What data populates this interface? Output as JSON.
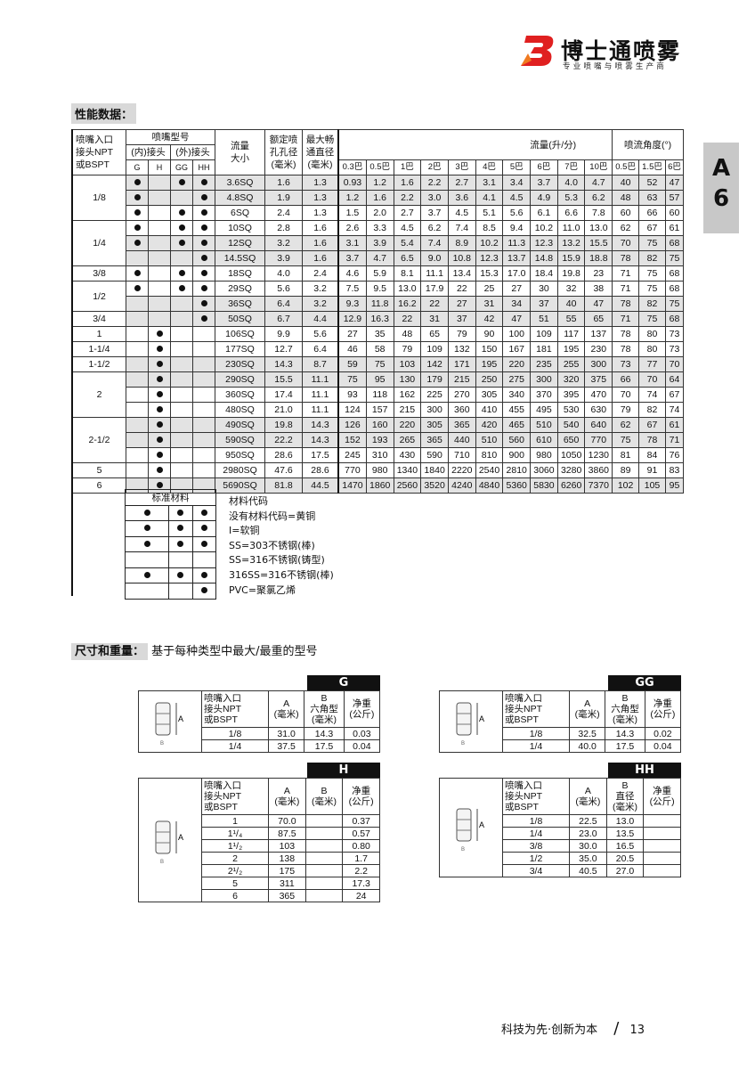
{
  "header": {
    "brand": "博士通喷雾",
    "tagline": "专业喷嘴与喷雾生产商",
    "logo_color": "#e02020"
  },
  "side_tab": {
    "letter": "A",
    "number": "6"
  },
  "performance": {
    "section_label": "性能数据：",
    "headers": {
      "inlet": [
        "喷嘴入口",
        "接头NPT",
        "或BSPT"
      ],
      "type": "喷嘴型号",
      "female": "(内)接头",
      "male": "(外)接头",
      "types": [
        "G",
        "H",
        "GG",
        "HH"
      ],
      "size": [
        "流量",
        "大小"
      ],
      "orifice": [
        "额定喷",
        "孔孔径",
        "(毫米)"
      ],
      "passage": [
        "最大畅",
        "通直径",
        "(毫米)"
      ],
      "flow": "流量(升/分)",
      "angle": "喷流角度(°)",
      "flow_pressures": [
        "0.3巴",
        "0.5巴",
        "1巴",
        "2巴",
        "3巴",
        "4巴",
        "5巴",
        "6巴",
        "7巴",
        "10巴"
      ],
      "angle_pressures": [
        "0.5巴",
        "1.5巴",
        "6巴"
      ]
    },
    "groups": [
      {
        "inlet": "1/8",
        "rows": [
          {
            "types": [
              1,
              0,
              1,
              1
            ],
            "size": "3.6SQ",
            "orifice": "1.6",
            "passage": "1.3",
            "flow": [
              "0.93",
              "1.2",
              "1.6",
              "2.2",
              "2.7",
              "3.1",
              "3.4",
              "3.7",
              "4.0",
              "4.7"
            ],
            "angle": [
              "40",
              "52",
              "47"
            ],
            "shade": true
          },
          {
            "types": [
              1,
              0,
              0,
              1
            ],
            "size": "4.8SQ",
            "orifice": "1.9",
            "passage": "1.3",
            "flow": [
              "1.2",
              "1.6",
              "2.2",
              "3.0",
              "3.6",
              "4.1",
              "4.5",
              "4.9",
              "5.3",
              "6.2"
            ],
            "angle": [
              "48",
              "63",
              "57"
            ],
            "shade": true
          },
          {
            "types": [
              1,
              0,
              1,
              1
            ],
            "size": "6SQ",
            "orifice": "2.4",
            "passage": "1.3",
            "flow": [
              "1.5",
              "2.0",
              "2.7",
              "3.7",
              "4.5",
              "5.1",
              "5.6",
              "6.1",
              "6.6",
              "7.8"
            ],
            "angle": [
              "60",
              "66",
              "60"
            ],
            "shade": false
          }
        ]
      },
      {
        "inlet": "1/4",
        "rows": [
          {
            "types": [
              1,
              0,
              1,
              1
            ],
            "size": "10SQ",
            "orifice": "2.8",
            "passage": "1.6",
            "flow": [
              "2.6",
              "3.3",
              "4.5",
              "6.2",
              "7.4",
              "8.5",
              "9.4",
              "10.2",
              "11.0",
              "13.0"
            ],
            "angle": [
              "62",
              "67",
              "61"
            ],
            "shade": false
          },
          {
            "types": [
              1,
              0,
              1,
              1
            ],
            "size": "12SQ",
            "orifice": "3.2",
            "passage": "1.6",
            "flow": [
              "3.1",
              "3.9",
              "5.4",
              "7.4",
              "8.9",
              "10.2",
              "11.3",
              "12.3",
              "13.2",
              "15.5"
            ],
            "angle": [
              "70",
              "75",
              "68"
            ],
            "shade": true
          },
          {
            "types": [
              0,
              0,
              0,
              1
            ],
            "size": "14.5SQ",
            "orifice": "3.9",
            "passage": "1.6",
            "flow": [
              "3.7",
              "4.7",
              "6.5",
              "9.0",
              "10.8",
              "12.3",
              "13.7",
              "14.8",
              "15.9",
              "18.8"
            ],
            "angle": [
              "78",
              "82",
              "75"
            ],
            "shade": true
          }
        ]
      },
      {
        "inlet": "3/8",
        "rows": [
          {
            "types": [
              1,
              0,
              1,
              1
            ],
            "size": "18SQ",
            "orifice": "4.0",
            "passage": "2.4",
            "flow": [
              "4.6",
              "5.9",
              "8.1",
              "11.1",
              "13.4",
              "15.3",
              "17.0",
              "18.4",
              "19.8",
              "23"
            ],
            "angle": [
              "71",
              "75",
              "68"
            ],
            "shade": false
          }
        ]
      },
      {
        "inlet": "1/2",
        "rows": [
          {
            "types": [
              1,
              0,
              1,
              1
            ],
            "size": "29SQ",
            "orifice": "5.6",
            "passage": "3.2",
            "flow": [
              "7.5",
              "9.5",
              "13.0",
              "17.9",
              "22",
              "25",
              "27",
              "30",
              "32",
              "38"
            ],
            "angle": [
              "71",
              "75",
              "68"
            ],
            "shade": false
          },
          {
            "types": [
              0,
              0,
              0,
              1
            ],
            "size": "36SQ",
            "orifice": "6.4",
            "passage": "3.2",
            "flow": [
              "9.3",
              "11.8",
              "16.2",
              "22",
              "27",
              "31",
              "34",
              "37",
              "40",
              "47"
            ],
            "angle": [
              "78",
              "82",
              "75"
            ],
            "shade": true
          }
        ]
      },
      {
        "inlet": "3/4",
        "rows": [
          {
            "types": [
              0,
              0,
              0,
              1
            ],
            "size": "50SQ",
            "orifice": "6.7",
            "passage": "4.4",
            "flow": [
              "12.9",
              "16.3",
              "22",
              "31",
              "37",
              "42",
              "47",
              "51",
              "55",
              "65"
            ],
            "angle": [
              "71",
              "75",
              "68"
            ],
            "shade": true
          }
        ]
      },
      {
        "inlet": "1",
        "rows": [
          {
            "types": [
              0,
              1,
              0,
              0
            ],
            "size": "106SQ",
            "orifice": "9.9",
            "passage": "5.6",
            "flow": [
              "27",
              "35",
              "48",
              "65",
              "79",
              "90",
              "100",
              "109",
              "117",
              "137"
            ],
            "angle": [
              "78",
              "80",
              "73"
            ],
            "shade": false
          }
        ]
      },
      {
        "inlet": "1-1/4",
        "rows": [
          {
            "types": [
              0,
              1,
              0,
              0
            ],
            "size": "177SQ",
            "orifice": "12.7",
            "passage": "6.4",
            "flow": [
              "46",
              "58",
              "79",
              "109",
              "132",
              "150",
              "167",
              "181",
              "195",
              "230"
            ],
            "angle": [
              "78",
              "80",
              "73"
            ],
            "shade": false
          }
        ]
      },
      {
        "inlet": "1-1/2",
        "rows": [
          {
            "types": [
              0,
              1,
              0,
              0
            ],
            "size": "230SQ",
            "orifice": "14.3",
            "passage": "8.7",
            "flow": [
              "59",
              "75",
              "103",
              "142",
              "171",
              "195",
              "220",
              "235",
              "255",
              "300"
            ],
            "angle": [
              "73",
              "77",
              "70"
            ],
            "shade": true
          }
        ]
      },
      {
        "inlet": "2",
        "rows": [
          {
            "types": [
              0,
              1,
              0,
              0
            ],
            "size": "290SQ",
            "orifice": "15.5",
            "passage": "11.1",
            "flow": [
              "75",
              "95",
              "130",
              "179",
              "215",
              "250",
              "275",
              "300",
              "320",
              "375"
            ],
            "angle": [
              "66",
              "70",
              "64"
            ],
            "shade": true
          },
          {
            "types": [
              0,
              1,
              0,
              0
            ],
            "size": "360SQ",
            "orifice": "17.4",
            "passage": "11.1",
            "flow": [
              "93",
              "118",
              "162",
              "225",
              "270",
              "305",
              "340",
              "370",
              "395",
              "470"
            ],
            "angle": [
              "70",
              "74",
              "67"
            ],
            "shade": false
          },
          {
            "types": [
              0,
              1,
              0,
              0
            ],
            "size": "480SQ",
            "orifice": "21.0",
            "passage": "11.1",
            "flow": [
              "124",
              "157",
              "215",
              "300",
              "360",
              "410",
              "455",
              "495",
              "530",
              "630"
            ],
            "angle": [
              "79",
              "82",
              "74"
            ],
            "shade": false
          }
        ]
      },
      {
        "inlet": "2-1/2",
        "rows": [
          {
            "types": [
              0,
              1,
              0,
              0
            ],
            "size": "490SQ",
            "orifice": "19.8",
            "passage": "14.3",
            "flow": [
              "126",
              "160",
              "220",
              "305",
              "365",
              "420",
              "465",
              "510",
              "540",
              "640"
            ],
            "angle": [
              "62",
              "67",
              "61"
            ],
            "shade": true
          },
          {
            "types": [
              0,
              1,
              0,
              0
            ],
            "size": "590SQ",
            "orifice": "22.2",
            "passage": "14.3",
            "flow": [
              "152",
              "193",
              "265",
              "365",
              "440",
              "510",
              "560",
              "610",
              "650",
              "770"
            ],
            "angle": [
              "75",
              "78",
              "71"
            ],
            "shade": true
          },
          {
            "types": [
              0,
              1,
              0,
              0
            ],
            "size": "950SQ",
            "orifice": "28.6",
            "passage": "17.5",
            "flow": [
              "245",
              "310",
              "430",
              "590",
              "710",
              "810",
              "900",
              "980",
              "1050",
              "1230"
            ],
            "angle": [
              "81",
              "84",
              "76"
            ],
            "shade": false
          }
        ]
      },
      {
        "inlet": "5",
        "rows": [
          {
            "types": [
              0,
              1,
              0,
              0
            ],
            "size": "2980SQ",
            "orifice": "47.6",
            "passage": "28.6",
            "flow": [
              "770",
              "980",
              "1340",
              "1840",
              "2220",
              "2540",
              "2810",
              "3060",
              "3280",
              "3860"
            ],
            "angle": [
              "89",
              "91",
              "83"
            ],
            "shade": false
          }
        ]
      },
      {
        "inlet": "6",
        "rows": [
          {
            "types": [
              0,
              1,
              0,
              0
            ],
            "size": "5690SQ",
            "orifice": "81.8",
            "passage": "44.5",
            "flow": [
              "1470",
              "1860",
              "2560",
              "3520",
              "4240",
              "4840",
              "5360",
              "5830",
              "6260",
              "7370"
            ],
            "angle": [
              "102",
              "105",
              "95"
            ],
            "shade": true
          }
        ]
      }
    ],
    "materials": {
      "header": "标准材料",
      "title": "材料代码",
      "rows": [
        {
          "marks": [
            1,
            1,
            1
          ],
          "label": "没有材料代码=黄铜"
        },
        {
          "marks": [
            1,
            1,
            1
          ],
          "label": "I=软铜"
        },
        {
          "marks": [
            1,
            1,
            1
          ],
          "label": "SS=303不锈钢(棒)"
        },
        {
          "marks": [
            0,
            0,
            0
          ],
          "label": "SS=316不锈钢(铸型)"
        },
        {
          "marks": [
            1,
            1,
            1
          ],
          "label": "316SS=316不锈钢(棒)"
        },
        {
          "marks": [
            0,
            0,
            1
          ],
          "label": "PVC=聚氯乙烯"
        }
      ]
    }
  },
  "dimensions": {
    "section_label": "尺寸和重量：",
    "section_note": "基于每种类型中最大/最重的型号",
    "tables": [
      {
        "tag": "G",
        "headers": [
          [
            "喷嘴入口",
            "接头NPT",
            "或BSPT"
          ],
          [
            "A",
            "(毫米)"
          ],
          [
            "B",
            "六角型",
            "(毫米)"
          ],
          [
            "净重",
            "(公斤)"
          ]
        ],
        "rows": [
          [
            "1/8",
            "31.0",
            "14.3",
            "0.03"
          ],
          [
            "1/4",
            "37.5",
            "17.5",
            "0.04"
          ]
        ]
      },
      {
        "tag": "GG",
        "headers": [
          [
            "喷嘴入口",
            "接头NPT",
            "或BSPT"
          ],
          [
            "A",
            "(毫米)"
          ],
          [
            "B",
            "六角型",
            "(毫米)"
          ],
          [
            "净重",
            "(公斤)"
          ]
        ],
        "rows": [
          [
            "1/8",
            "32.5",
            "14.3",
            "0.02"
          ],
          [
            "1/4",
            "40.0",
            "17.5",
            "0.04"
          ]
        ]
      },
      {
        "tag": "H",
        "headers": [
          [
            "喷嘴入口",
            "接头NPT",
            "或BSPT"
          ],
          [
            "A",
            "(毫米)"
          ],
          [
            "B",
            "(毫米)"
          ],
          [
            "净重",
            "(公斤)"
          ]
        ],
        "rows": [
          [
            "1",
            "70.0",
            "",
            "0.37"
          ],
          [
            "1¹/₄",
            "87.5",
            "",
            "0.57"
          ],
          [
            "1¹/₂",
            "103",
            "",
            "0.80"
          ],
          [
            "2",
            "138",
            "",
            "1.7"
          ],
          [
            "2¹/₂",
            "175",
            "",
            "2.2"
          ],
          [
            "5",
            "311",
            "",
            "17.3"
          ],
          [
            "6",
            "365",
            "",
            "24"
          ]
        ]
      },
      {
        "tag": "HH",
        "headers": [
          [
            "喷嘴入口",
            "接头NPT",
            "或BSPT"
          ],
          [
            "A",
            "(毫米)"
          ],
          [
            "B",
            "直径",
            "(毫米)"
          ],
          [
            "净重",
            "(公斤)"
          ]
        ],
        "rows": [
          [
            "1/8",
            "22.5",
            "13.0",
            ""
          ],
          [
            "1/4",
            "23.0",
            "13.5",
            ""
          ],
          [
            "3/8",
            "30.0",
            "16.5",
            ""
          ],
          [
            "1/2",
            "35.0",
            "20.5",
            ""
          ],
          [
            "3/4",
            "40.5",
            "27.0",
            ""
          ]
        ]
      }
    ],
    "drawing_labels": {
      "a": "A",
      "b": "B"
    }
  },
  "footer": {
    "slogan": "科技为先·创新为本",
    "separator": "/",
    "page": "13"
  }
}
